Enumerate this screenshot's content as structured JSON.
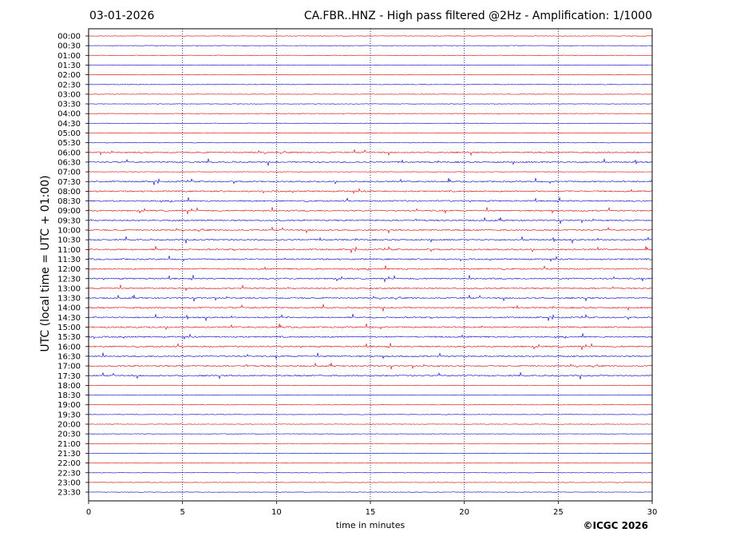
{
  "header": {
    "date": "03-01-2026",
    "title": "CA.FBR..HNZ - High pass filtered @2Hz - Amplification: 1/1000"
  },
  "footer": {
    "credit": "©ICGC 2026"
  },
  "colors": {
    "trace_a": "#dd0000",
    "trace_b": "#0000cc",
    "grid": "#000080"
  },
  "chart_data": {
    "type": "line",
    "title": "CA.FBR..HNZ - High pass filtered @2Hz - Amplification: 1/1000",
    "xlabel": "time in minutes",
    "ylabel": "UTC (local time = UTC + 01:00)",
    "xlim": [
      0,
      30
    ],
    "x_ticks": [
      0,
      5,
      10,
      15,
      20,
      25,
      30
    ],
    "x_gridlines": [
      5,
      10,
      15,
      20,
      25
    ],
    "rows": [
      "00:00",
      "00:30",
      "01:00",
      "01:30",
      "02:00",
      "02:30",
      "03:00",
      "03:30",
      "04:00",
      "04:30",
      "05:00",
      "05:30",
      "06:00",
      "06:30",
      "07:00",
      "07:30",
      "08:00",
      "08:30",
      "09:00",
      "09:30",
      "10:00",
      "10:30",
      "11:00",
      "11:30",
      "12:00",
      "12:30",
      "13:00",
      "13:30",
      "14:00",
      "14:30",
      "15:00",
      "15:30",
      "16:00",
      "16:30",
      "17:00",
      "17:30",
      "18:00",
      "18:30",
      "19:00",
      "19:30",
      "20:00",
      "20:30",
      "21:00",
      "21:30",
      "22:00",
      "22:30",
      "23:00",
      "23:30"
    ],
    "row_colors": [
      "red",
      "blue"
    ],
    "active_rows": [
      "06:00",
      "06:30",
      "07:30",
      "08:00",
      "08:30",
      "09:00",
      "09:30",
      "10:00",
      "10:30",
      "11:00",
      "11:30",
      "12:00",
      "12:30",
      "13:00",
      "13:30",
      "14:00",
      "14:30",
      "15:00",
      "15:30",
      "16:00",
      "16:30",
      "17:00",
      "17:30"
    ],
    "grid": true
  }
}
